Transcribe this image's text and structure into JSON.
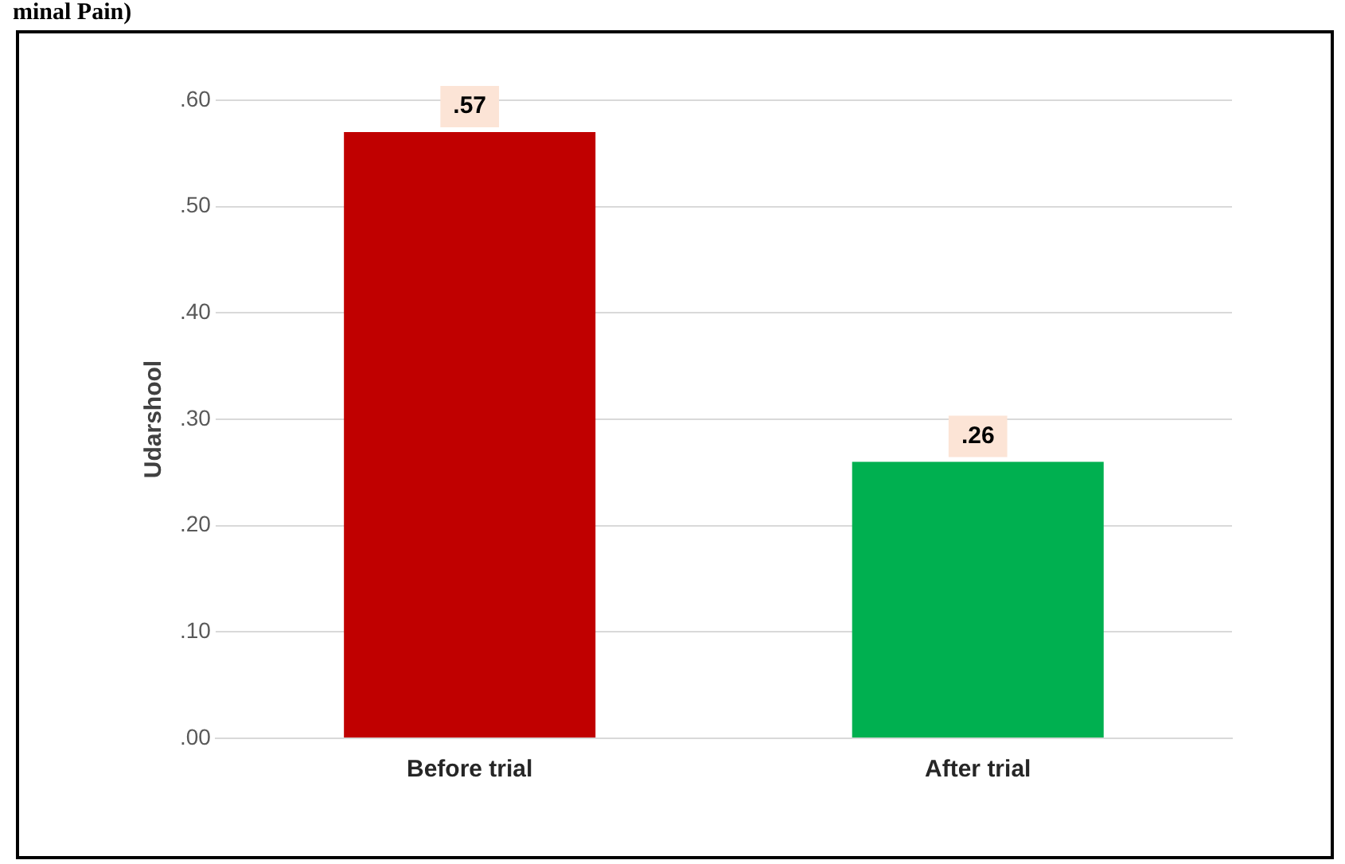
{
  "chart_data": {
    "type": "bar",
    "ylabel": "Udarshool",
    "categories": [
      "Before trial",
      "After trial"
    ],
    "values": [
      0.57,
      0.26
    ],
    "colors": [
      "#c00000",
      "#00b050"
    ],
    "value_labels": [
      ".57",
      ".26"
    ],
    "ylim": [
      0,
      0.6
    ],
    "yticks": [
      {
        "value": 0,
        "label": ".00"
      },
      {
        "value": 0.1,
        "label": ".10"
      },
      {
        "value": 0.2,
        "label": ".20"
      },
      {
        "value": 0.3,
        "label": ".30"
      },
      {
        "value": 0.4,
        "label": ".40"
      },
      {
        "value": 0.5,
        "label": ".50"
      },
      {
        "value": 0.6,
        "label": ".60"
      }
    ],
    "grid": "y",
    "annotations": [
      "minal Pain)"
    ]
  }
}
